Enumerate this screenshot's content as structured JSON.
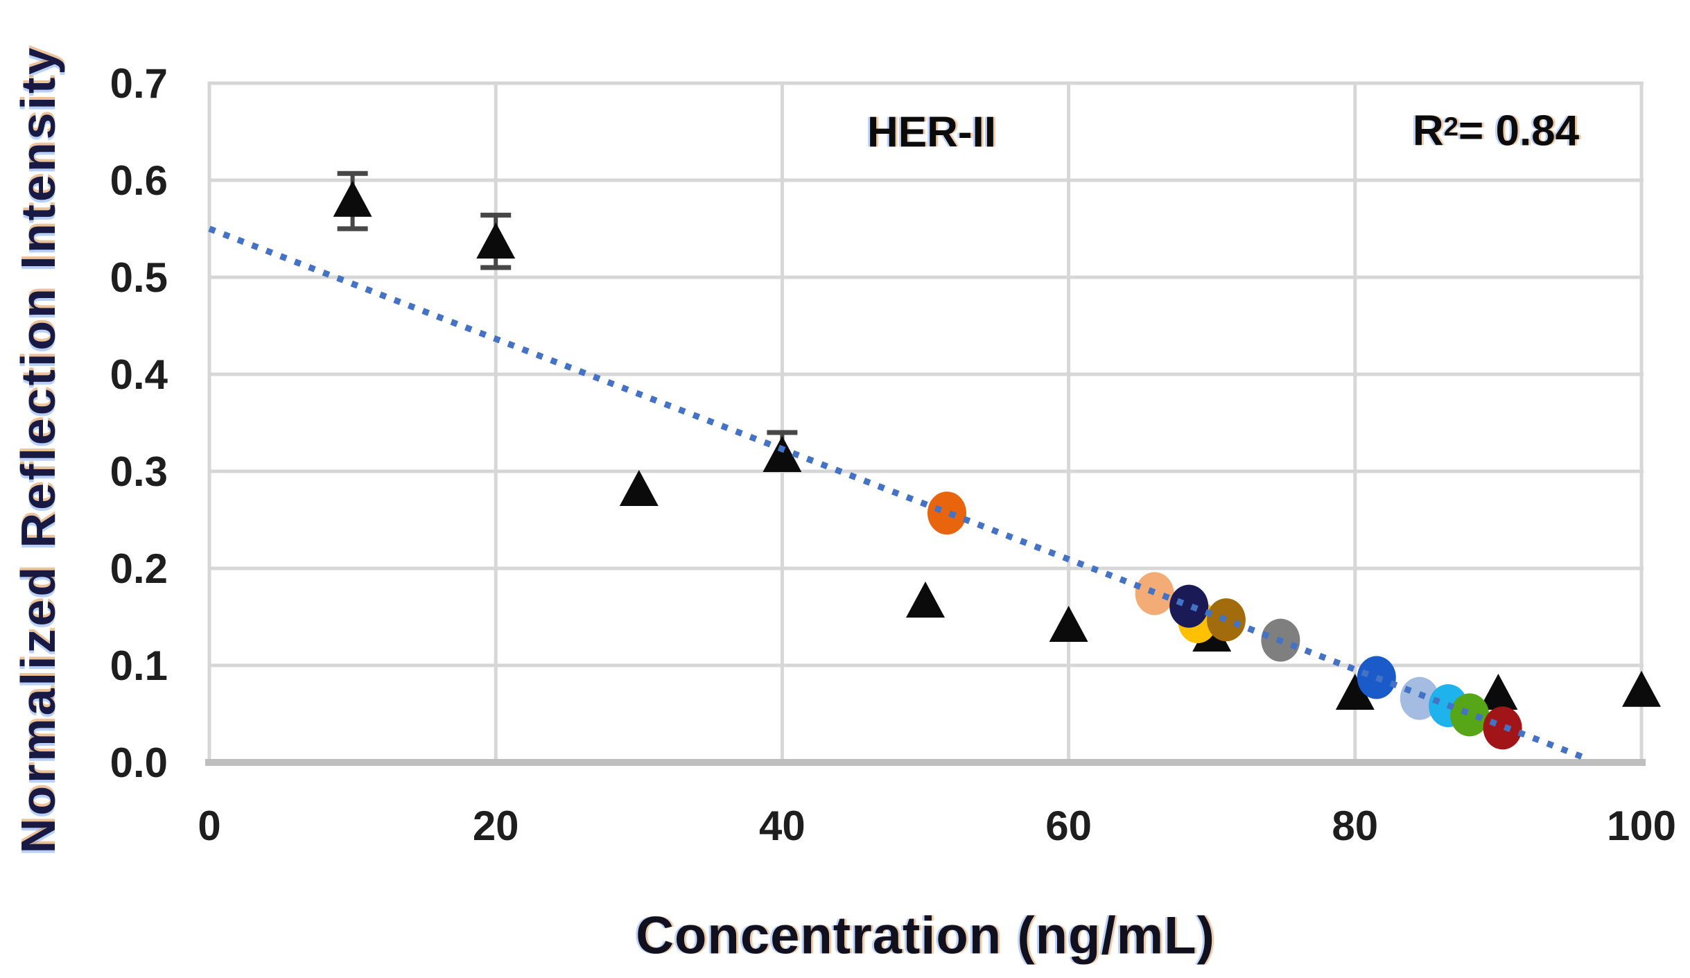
{
  "chart_data": {
    "type": "scatter",
    "xlabel": "Concentration (ng/mL)",
    "ylabel": "Normalized Reflection Intensity",
    "annotations": {
      "series_label": "HER-II",
      "r_squared": {
        "base": "R",
        "sup": "2",
        "rest": "= 0.84"
      }
    },
    "xlim": [
      0,
      100
    ],
    "ylim": [
      0,
      0.7
    ],
    "grid": true,
    "legend": "none",
    "x_ticks": [
      "0",
      "20",
      "40",
      "60",
      "80",
      "100"
    ],
    "y_ticks": [
      "0.0",
      "0.1",
      "0.2",
      "0.3",
      "0.4",
      "0.5",
      "0.6",
      "0.7"
    ],
    "colors": {
      "gridline": "#D7D7D7",
      "axis_line": "#BEBEBE",
      "trendline": "#4472C4",
      "triangle_marker": "#0B0B0B",
      "error_bar": "#474747"
    },
    "series": [
      {
        "marker": "triangle",
        "points": [
          {
            "x": 10,
            "y": 0.578,
            "err_up": 0.029,
            "err_down": 0.028
          },
          {
            "x": 20,
            "y": 0.535,
            "err_up": 0.029,
            "err_down": 0.025
          },
          {
            "x": 30,
            "y": 0.28
          },
          {
            "x": 40,
            "y": 0.315,
            "err_up": 0.025,
            "err_down": 0
          },
          {
            "x": 50,
            "y": 0.165
          },
          {
            "x": 60,
            "y": 0.14
          },
          {
            "x": 70,
            "y": 0.13
          },
          {
            "x": 80,
            "y": 0.07
          },
          {
            "x": 90,
            "y": 0.07
          },
          {
            "x": 100,
            "y": 0.073
          }
        ]
      },
      {
        "marker": "circle",
        "points": [
          {
            "x": 51.5,
            "y": 0.257,
            "color": "#E8650D"
          },
          {
            "x": 66,
            "y": 0.174,
            "color": "#F4AC76"
          },
          {
            "x": 69,
            "y": 0.145,
            "color": "#FFC000"
          },
          {
            "x": 68.4,
            "y": 0.161,
            "color": "#191A56"
          },
          {
            "x": 71,
            "y": 0.147,
            "color": "#A26B0B"
          },
          {
            "x": 74.8,
            "y": 0.126,
            "color": "#7F7F7F"
          },
          {
            "x": 81.5,
            "y": 0.0875,
            "color": "#1A5BC9"
          },
          {
            "x": 84.5,
            "y": 0.066,
            "color": "#A4BCE2"
          },
          {
            "x": 86.5,
            "y": 0.0585,
            "color": "#1FB3ED"
          },
          {
            "x": 88,
            "y": 0.049,
            "color": "#56A617"
          },
          {
            "x": 90.3,
            "y": 0.0355,
            "color": "#A11418"
          }
        ]
      }
    ],
    "trendline": {
      "style": "dotted",
      "x1": 0,
      "y1": 0.55,
      "x2": 96,
      "y2": 0.005
    }
  }
}
